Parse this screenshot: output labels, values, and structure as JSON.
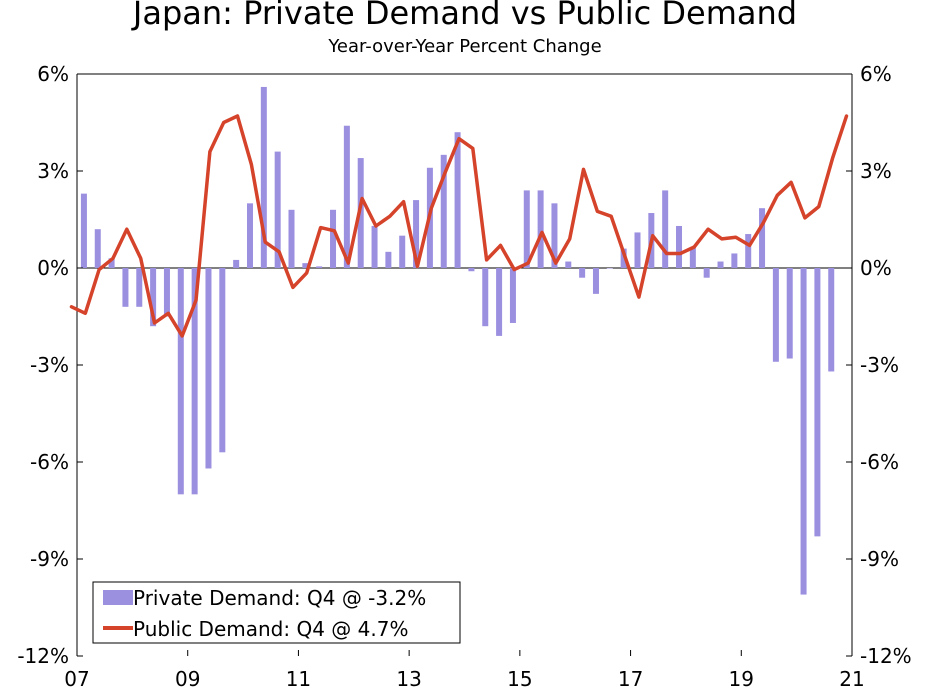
{
  "chart_data": {
    "type": "bar+line",
    "title": "Japan: Private Demand vs Public Demand",
    "subtitle": "Year-over-Year Percent Change",
    "xlabel": "",
    "ylabel": "",
    "ylim": [
      -12,
      6
    ],
    "y_ticks": [
      6,
      3,
      0,
      -3,
      -6,
      -9,
      -12
    ],
    "y_tick_labels": [
      "6%",
      "3%",
      "0%",
      "-3%",
      "-6%",
      "-9%",
      "-12%"
    ],
    "x_start": 2007.0,
    "x_end": 2021.0,
    "x_ticks": [
      2007,
      2009,
      2011,
      2013,
      2015,
      2017,
      2019,
      2021
    ],
    "x_tick_labels": [
      "07",
      "09",
      "11",
      "13",
      "15",
      "17",
      "19",
      "21"
    ],
    "legend_position": "bottom-left",
    "series": [
      {
        "name": "Private Demand: Q4 @ -3.2%",
        "kind": "bar",
        "color": "#9b8fe0",
        "x_start": 2007.125,
        "x_step": 0.25,
        "values": [
          2.3,
          1.2,
          0.3,
          -1.2,
          -1.2,
          -1.8,
          -1.5,
          -7.0,
          -7.0,
          -6.2,
          -5.7,
          0.25,
          2.0,
          5.6,
          3.6,
          1.8,
          0.15,
          0.05,
          1.8,
          4.4,
          3.4,
          1.3,
          0.5,
          1.0,
          2.1,
          3.1,
          3.5,
          4.2,
          -0.1,
          -1.8,
          -2.1,
          -1.7,
          2.4,
          2.4,
          2.0,
          0.2,
          -0.3,
          -0.8,
          0.0,
          0.6,
          1.1,
          1.7,
          2.4,
          1.3,
          0.65,
          -0.3,
          0.2,
          0.45,
          1.05,
          1.85,
          -2.9,
          -2.8,
          -10.1,
          -8.3,
          -3.2
        ]
      },
      {
        "name": "Public Demand: Q4 @ 4.7%",
        "kind": "line",
        "color": "#d5432b",
        "x_start": 2006.9,
        "x_step": 0.25,
        "values": [
          -1.2,
          -1.4,
          -0.05,
          0.3,
          1.2,
          0.3,
          -1.7,
          -1.4,
          -2.1,
          -1.0,
          3.6,
          4.5,
          4.7,
          3.2,
          0.8,
          0.5,
          -0.6,
          -0.15,
          1.25,
          1.15,
          0.15,
          2.15,
          1.3,
          1.6,
          2.05,
          0.05,
          1.85,
          2.95,
          4.0,
          3.7,
          0.25,
          0.7,
          -0.05,
          0.15,
          1.1,
          0.15,
          0.9,
          3.05,
          1.75,
          1.6,
          0.35,
          -0.9,
          1.0,
          0.45,
          0.45,
          0.65,
          1.2,
          0.9,
          0.95,
          0.7,
          1.4,
          2.25,
          2.65,
          1.55,
          1.9,
          3.4,
          4.7
        ]
      }
    ]
  }
}
